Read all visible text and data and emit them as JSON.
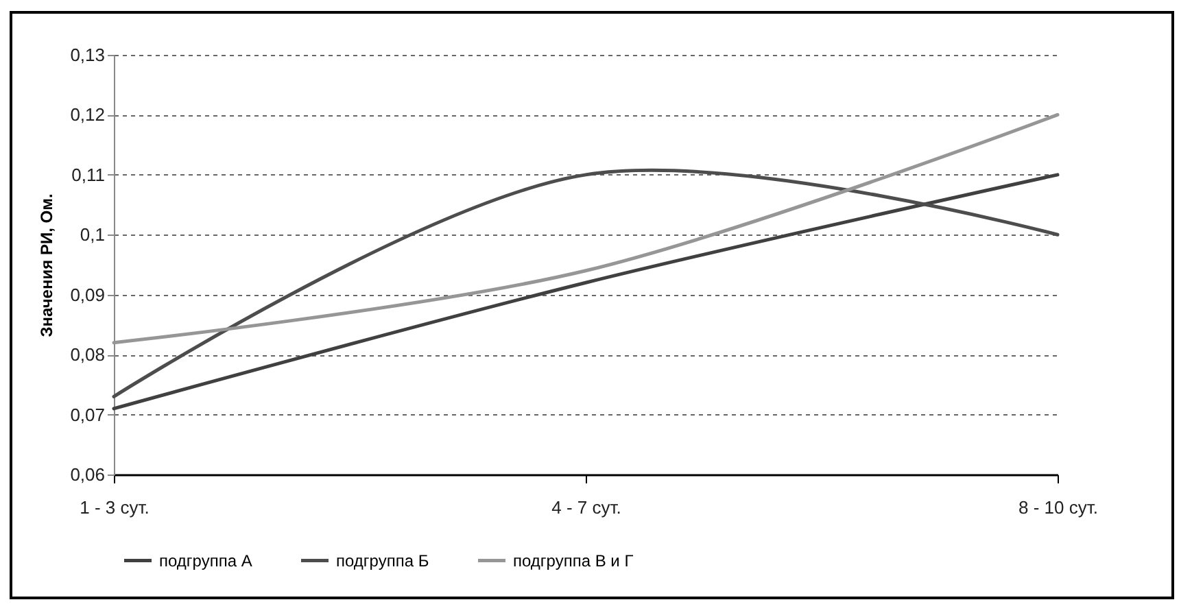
{
  "chart_data": {
    "type": "line",
    "ylabel": "Значения РИ, Ом.",
    "categories": [
      "1 - 3 сут.",
      "4 - 7 сут.",
      "8 - 10 сут."
    ],
    "series": [
      {
        "name": "подгруппа А",
        "color": "#404040",
        "values": [
          0.071,
          0.092,
          0.11
        ]
      },
      {
        "name": "подгруппа Б",
        "color": "#4d4d4d",
        "values": [
          0.073,
          0.11,
          0.1
        ]
      },
      {
        "name": "подгруппа В и Г",
        "color": "#969696",
        "values": [
          0.082,
          0.094,
          0.12
        ]
      }
    ],
    "ylim": [
      0.06,
      0.13
    ],
    "yticks": [
      {
        "value": 0.06,
        "label": "0,06"
      },
      {
        "value": 0.07,
        "label": "0,07"
      },
      {
        "value": 0.08,
        "label": "0,08"
      },
      {
        "value": 0.09,
        "label": "0,09"
      },
      {
        "value": 0.1,
        "label": "0,1"
      },
      {
        "value": 0.11,
        "label": "0,11"
      },
      {
        "value": 0.12,
        "label": "0,12"
      },
      {
        "value": 0.13,
        "label": "0,13"
      }
    ],
    "grid": "y",
    "legend": "bottom",
    "marker": "none",
    "line_style": "solid"
  }
}
